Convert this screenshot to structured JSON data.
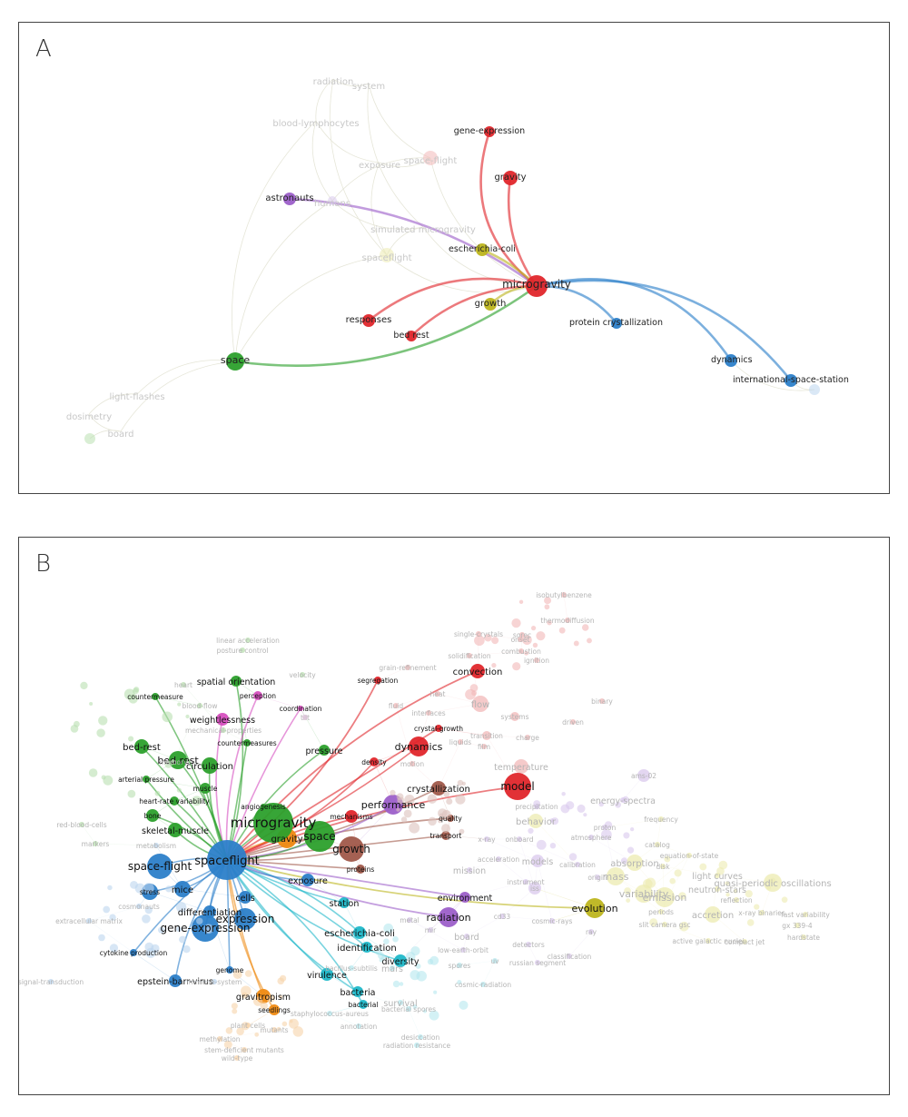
{
  "panels": {
    "a": {
      "label": "A"
    },
    "b": {
      "label": "B"
    }
  },
  "colors": {
    "red": "#e0262b",
    "green": "#2ca02c",
    "blue": "#2c7fc9",
    "olive": "#bdb51e",
    "purple": "#9c5fc9",
    "cyan": "#1fb8c9",
    "orange": "#ef8a12",
    "brown": "#a0584a",
    "pink": "#d64fbf",
    "lightred": "#f2b8b8",
    "lightgreen": "#b9e0b0",
    "lightpurple": "#d9c8ec",
    "lightolive": "#ecebb0",
    "lightblue": "#bcd6ef",
    "lightorange": "#f7d3aa",
    "lightcyan": "#b5e8ef",
    "lightpink": "#ecc4e6",
    "lightbrown": "#dcc2bc"
  },
  "network_a": {
    "nodes": [
      {
        "label": "radiation",
        "color": "lightpurple",
        "dim": true,
        "size": 0
      },
      {
        "label": "system",
        "color": "lightpurple",
        "dim": true,
        "size": 0
      },
      {
        "label": "blood-lymphocytes",
        "color": "lightpurple",
        "dim": true,
        "size": 0
      },
      {
        "label": "exposure",
        "color": "lightolive",
        "dim": true,
        "size": 0
      },
      {
        "label": "space-flight",
        "color": "lightred",
        "dim": true,
        "size": 8
      },
      {
        "label": "humans",
        "color": "lightpurple",
        "dim": true,
        "size": 5
      },
      {
        "label": "simulated microgravity",
        "color": "lightolive",
        "dim": true,
        "size": 0
      },
      {
        "label": "spaceflight",
        "color": "lightolive",
        "dim": true,
        "size": 8
      },
      {
        "label": "gene-expression",
        "color": "red",
        "size": 6
      },
      {
        "label": "gravity",
        "color": "red",
        "size": 8
      },
      {
        "label": "astronauts",
        "color": "purple",
        "size": 7
      },
      {
        "label": "escherichia-coli",
        "color": "olive",
        "size": 7
      },
      {
        "label": "microgravity",
        "color": "red",
        "size": 12
      },
      {
        "label": "growth",
        "color": "olive",
        "size": 7
      },
      {
        "label": "protein crystallization",
        "color": "blue",
        "size": 6
      },
      {
        "label": "responses",
        "color": "red",
        "size": 7
      },
      {
        "label": "bed rest",
        "color": "red",
        "size": 6
      },
      {
        "label": "space",
        "color": "green",
        "size": 10
      },
      {
        "label": "dynamics",
        "color": "blue",
        "size": 7
      },
      {
        "label": "international-space-station",
        "color": "blue",
        "size": 7
      },
      {
        "label": "light-flashes",
        "color": "lightgreen",
        "dim": true,
        "size": 0
      },
      {
        "label": "dosimetry",
        "color": "lightgreen",
        "dim": true,
        "size": 0
      },
      {
        "label": "board",
        "color": "lightgreen",
        "dim": true,
        "size": 0
      },
      {
        "label": "",
        "color": "lightgreen",
        "dim": true,
        "size": 6
      },
      {
        "label": "",
        "color": "lightblue",
        "dim": true,
        "size": 6
      }
    ],
    "edges": [
      {
        "from": "microgravity",
        "to": "gene-expression",
        "color": "red"
      },
      {
        "from": "microgravity",
        "to": "gravity",
        "color": "red"
      },
      {
        "from": "microgravity",
        "to": "astronauts",
        "color": "purple"
      },
      {
        "from": "microgravity",
        "to": "escherichia-coli",
        "color": "olive"
      },
      {
        "from": "microgravity",
        "to": "growth",
        "color": "olive"
      },
      {
        "from": "microgravity",
        "to": "protein crystallization",
        "color": "blue"
      },
      {
        "from": "microgravity",
        "to": "responses",
        "color": "red"
      },
      {
        "from": "microgravity",
        "to": "bed rest",
        "color": "red"
      },
      {
        "from": "microgravity",
        "to": "space",
        "color": "green"
      },
      {
        "from": "microgravity",
        "to": "dynamics",
        "color": "blue"
      },
      {
        "from": "microgravity",
        "to": "international-space-station",
        "color": "blue"
      }
    ]
  },
  "network_b": {
    "nodes": [
      {
        "label": "isobutylbenzene",
        "color": "lightred",
        "size": 0
      },
      {
        "label": "thermodiffusion",
        "color": "lightred",
        "size": 0
      },
      {
        "label": "single-crystals",
        "color": "lightred",
        "size": 0
      },
      {
        "label": "onset",
        "color": "lightred",
        "size": 0
      },
      {
        "label": "sorec",
        "color": "lightred",
        "size": 0
      },
      {
        "label": "combustion",
        "color": "lightred",
        "size": 0
      },
      {
        "label": "solidification",
        "color": "lightred",
        "size": 0
      },
      {
        "label": "ignition",
        "color": "lightred",
        "size": 0
      },
      {
        "label": "grain-refinement",
        "color": "lightred",
        "size": 0
      },
      {
        "label": "segregation",
        "color": "red",
        "size": 4
      },
      {
        "label": "convection",
        "color": "red",
        "size": 8
      },
      {
        "label": "binary",
        "color": "lightred",
        "size": 0
      },
      {
        "label": "fluid",
        "color": "lightred",
        "size": 0
      },
      {
        "label": "heat",
        "color": "lightred",
        "size": 0
      },
      {
        "label": "flow",
        "color": "lightred",
        "size": 9
      },
      {
        "label": "interfaces",
        "color": "lightred",
        "size": 0
      },
      {
        "label": "systems",
        "color": "lightred",
        "size": 5
      },
      {
        "label": "crystal-growth",
        "color": "red",
        "size": 4
      },
      {
        "label": "transition",
        "color": "lightred",
        "size": 5
      },
      {
        "label": "charge",
        "color": "lightred",
        "size": 0
      },
      {
        "label": "liquids",
        "color": "lightred",
        "size": 0
      },
      {
        "label": "film",
        "color": "lightred",
        "size": 0
      },
      {
        "label": "driven",
        "color": "lightred",
        "size": 0
      },
      {
        "label": "dynamics",
        "color": "red",
        "size": 11
      },
      {
        "label": "density",
        "color": "red",
        "size": 5
      },
      {
        "label": "temperature",
        "color": "lightred",
        "size": 8
      },
      {
        "label": "model",
        "color": "red",
        "size": 15
      },
      {
        "label": "motion",
        "color": "lightred",
        "size": 0
      },
      {
        "label": "crystallization",
        "color": "brown",
        "size": 8
      },
      {
        "label": "precipitation",
        "color": "lightpurple",
        "size": 0
      },
      {
        "label": "ams-02",
        "color": "lightpurple",
        "size": 7
      },
      {
        "label": "energy-spectra",
        "color": "lightpurple",
        "size": 0
      },
      {
        "label": "behavior",
        "color": "lightolive",
        "size": 8
      },
      {
        "label": "frequency",
        "color": "lightolive",
        "size": 0
      },
      {
        "label": "proton",
        "color": "lightpurple",
        "size": 0
      },
      {
        "label": "atmosphere",
        "color": "lightpurple",
        "size": 0
      },
      {
        "label": "quality",
        "color": "brown",
        "size": 4
      },
      {
        "label": "transport",
        "color": "brown",
        "size": 5
      },
      {
        "label": "x-ray",
        "color": "lightpurple",
        "size": 0
      },
      {
        "label": "onboard",
        "color": "lightpurple",
        "size": 0
      },
      {
        "label": "calibration",
        "color": "lightpurple",
        "size": 0
      },
      {
        "label": "catalog",
        "color": "lightolive",
        "size": 0
      },
      {
        "label": "equation-of-state",
        "color": "lightolive",
        "size": 0
      },
      {
        "label": "absorption",
        "color": "lightolive",
        "size": 9
      },
      {
        "label": "origin",
        "color": "lightpurple",
        "size": 0
      },
      {
        "label": "disk",
        "color": "lightolive",
        "size": 0
      },
      {
        "label": "light curves",
        "color": "lightolive",
        "size": 0
      },
      {
        "label": "quasi-periodic oscillations",
        "color": "lightolive",
        "size": 10
      },
      {
        "label": "neutron-stars",
        "color": "lightolive",
        "size": 0
      },
      {
        "label": "mass",
        "color": "lightolive",
        "size": 10
      },
      {
        "label": "variability",
        "color": "lightolive",
        "size": 10
      },
      {
        "label": "emission",
        "color": "lightolive",
        "size": 11
      },
      {
        "label": "reflection",
        "color": "lightolive",
        "size": 0
      },
      {
        "label": "evolution",
        "color": "olive",
        "size": 11
      },
      {
        "label": "accretion",
        "color": "lightolive",
        "size": 9
      },
      {
        "label": "x-ray binaries",
        "color": "lightolive",
        "size": 0
      },
      {
        "label": "fast variability",
        "color": "lightolive",
        "size": 0
      },
      {
        "label": "periods",
        "color": "lightolive",
        "size": 0
      },
      {
        "label": "gx 339-4",
        "color": "lightolive",
        "size": 0
      },
      {
        "label": "hardstate",
        "color": "lightolive",
        "size": 0
      },
      {
        "label": "slit camera gsc",
        "color": "lightolive",
        "size": 0
      },
      {
        "label": "active galactic nuclei",
        "color": "lightolive",
        "size": 0
      },
      {
        "label": "compact jet",
        "color": "lightolive",
        "size": 0
      },
      {
        "label": "ray",
        "color": "lightpurple",
        "size": 0
      },
      {
        "label": "classification",
        "color": "lightpurple",
        "size": 0
      },
      {
        "label": "russian segment",
        "color": "lightpurple",
        "size": 0
      },
      {
        "label": "detectors",
        "color": "lightpurple",
        "size": 0
      },
      {
        "label": "models",
        "color": "lightpurple",
        "size": 7
      },
      {
        "label": "iss",
        "color": "lightpurple",
        "size": 7
      },
      {
        "label": "mission",
        "color": "lightpurple",
        "size": 0
      },
      {
        "label": "acceleration",
        "color": "lightpurple",
        "size": 0
      },
      {
        "label": "instrument",
        "color": "lightpurple",
        "size": 0
      },
      {
        "label": "environment",
        "color": "purple",
        "size": 6
      },
      {
        "label": "radiation",
        "color": "purple",
        "size": 11
      },
      {
        "label": "performance",
        "color": "purple",
        "size": 11
      },
      {
        "label": "cosmic-rays",
        "color": "lightpurple",
        "size": 0
      },
      {
        "label": "cd33",
        "color": "lightpurple",
        "size": 0
      },
      {
        "label": "board",
        "color": "lightpurple",
        "size": 0
      },
      {
        "label": "low-earth-orbit",
        "color": "lightpurple",
        "size": 0
      },
      {
        "label": "metal",
        "color": "lightpurple",
        "size": 0
      },
      {
        "label": "mir",
        "color": "lightpurple",
        "size": 0
      },
      {
        "label": "mars",
        "color": "lightcyan",
        "size": 0
      },
      {
        "label": "spores",
        "color": "lightcyan",
        "size": 0
      },
      {
        "label": "uv",
        "color": "lightcyan",
        "size": 0
      },
      {
        "label": "cosmic-radiation",
        "color": "lightcyan",
        "size": 0
      },
      {
        "label": "survival",
        "color": "lightcyan",
        "size": 0
      },
      {
        "label": "bacterial spores",
        "color": "lightcyan",
        "size": 0
      },
      {
        "label": "desiccation",
        "color": "lightcyan",
        "size": 0
      },
      {
        "label": "radiation resistance",
        "color": "lightcyan",
        "size": 0
      },
      {
        "label": "diversity",
        "color": "cyan",
        "size": 7
      },
      {
        "label": "escherichia-coli",
        "color": "cyan",
        "size": 7
      },
      {
        "label": "identification",
        "color": "cyan",
        "size": 6
      },
      {
        "label": "bacillus-subtilis",
        "color": "lightcyan",
        "size": 0
      },
      {
        "label": "virulence",
        "color": "cyan",
        "size": 7
      },
      {
        "label": "bacteria",
        "color": "cyan",
        "size": 6
      },
      {
        "label": "bacterial",
        "color": "cyan",
        "size": 5
      },
      {
        "label": "staphylococcus-aureus",
        "color": "lightcyan",
        "size": 0
      },
      {
        "label": "annotation",
        "color": "lightcyan",
        "size": 0
      },
      {
        "label": "station",
        "color": "cyan",
        "size": 6
      },
      {
        "label": "exposure",
        "color": "blue",
        "size": 7
      },
      {
        "label": "pressure",
        "color": "green",
        "size": 6
      },
      {
        "label": "mechanisms",
        "color": "red",
        "size": 7
      },
      {
        "label": "proteins",
        "color": "brown",
        "size": 5
      },
      {
        "label": "growth",
        "color": "brown",
        "size": 14
      },
      {
        "label": "space",
        "color": "green",
        "size": 17
      },
      {
        "label": "gravity",
        "color": "orange",
        "size": 11
      },
      {
        "label": "microgravity",
        "color": "green",
        "size": 22
      },
      {
        "label": "angiogenesis",
        "color": "green",
        "size": 0
      },
      {
        "label": "spaceflight",
        "color": "blue",
        "size": 22
      },
      {
        "label": "space-flight",
        "color": "blue",
        "size": 14
      },
      {
        "label": "mice",
        "color": "blue",
        "size": 9
      },
      {
        "label": "cells",
        "color": "blue",
        "size": 7
      },
      {
        "label": "expression",
        "color": "blue",
        "size": 12
      },
      {
        "label": "gene-expression",
        "color": "blue",
        "size": 15
      },
      {
        "label": "differentiation",
        "color": "blue",
        "size": 7
      },
      {
        "label": "stress",
        "color": "blue",
        "size": 9
      },
      {
        "label": "cosmonauts",
        "color": "lightblue",
        "size": 0
      },
      {
        "label": "extracellular matrix",
        "color": "lightblue",
        "size": 0
      },
      {
        "label": "cytokine production",
        "color": "blue",
        "size": 4
      },
      {
        "label": "epstein-barr-virus",
        "color": "blue",
        "size": 7
      },
      {
        "label": "immune-system",
        "color": "lightblue",
        "size": 0
      },
      {
        "label": "signal-transduction",
        "color": "lightblue",
        "size": 0
      },
      {
        "label": "genome",
        "color": "blue",
        "size": 4
      },
      {
        "label": "gravitropism",
        "color": "orange",
        "size": 8
      },
      {
        "label": "seedlings",
        "color": "orange",
        "size": 6
      },
      {
        "label": "plant cells",
        "color": "lightorange",
        "size": 0
      },
      {
        "label": "mutants",
        "color": "lightorange",
        "size": 0
      },
      {
        "label": "methylation",
        "color": "lightorange",
        "size": 0
      },
      {
        "label": "stem-deficient mutants",
        "color": "lightorange",
        "size": 0
      },
      {
        "label": "wild-type",
        "color": "lightorange",
        "size": 0
      },
      {
        "label": "linear acceleration",
        "color": "lightgreen",
        "size": 0
      },
      {
        "label": "posture control",
        "color": "lightgreen",
        "size": 0
      },
      {
        "label": "velocity",
        "color": "lightgreen",
        "size": 0
      },
      {
        "label": "heart",
        "color": "lightgreen",
        "size": 0
      },
      {
        "label": "spatial orientation",
        "color": "green",
        "size": 6
      },
      {
        "label": "perception",
        "color": "pink",
        "size": 5
      },
      {
        "label": "coordination",
        "color": "pink",
        "size": 3
      },
      {
        "label": "tilt",
        "color": "lightpink",
        "size": 0
      },
      {
        "label": "countermeasure",
        "color": "green",
        "size": 4
      },
      {
        "label": "blood-flow",
        "color": "lightgreen",
        "size": 0
      },
      {
        "label": "weightlessness",
        "color": "pink",
        "size": 7
      },
      {
        "label": "mechanical-properties",
        "color": "lightgreen",
        "size": 0
      },
      {
        "label": "countermeasures",
        "color": "green",
        "size": 4
      },
      {
        "label": "bed-rest",
        "color": "green",
        "size": 8
      },
      {
        "label": "bed rest",
        "color": "green",
        "size": 10
      },
      {
        "label": "circulation",
        "color": "green",
        "size": 9
      },
      {
        "label": "arterial pressure",
        "color": "green",
        "size": 4
      },
      {
        "label": "muscle",
        "color": "green",
        "size": 6
      },
      {
        "label": "heart-rate variability",
        "color": "green",
        "size": 5
      },
      {
        "label": "bone",
        "color": "green",
        "size": 7
      },
      {
        "label": "skeletal-muscle",
        "color": "green",
        "size": 8
      },
      {
        "label": "red-blood-cells",
        "color": "lightgreen",
        "size": 0
      },
      {
        "label": "markers",
        "color": "lightgreen",
        "size": 0
      },
      {
        "label": "metabolism",
        "color": "lightblue",
        "size": 0
      },
      {
        "label": "memory",
        "color": "lightgreen",
        "size": 0
      }
    ]
  }
}
